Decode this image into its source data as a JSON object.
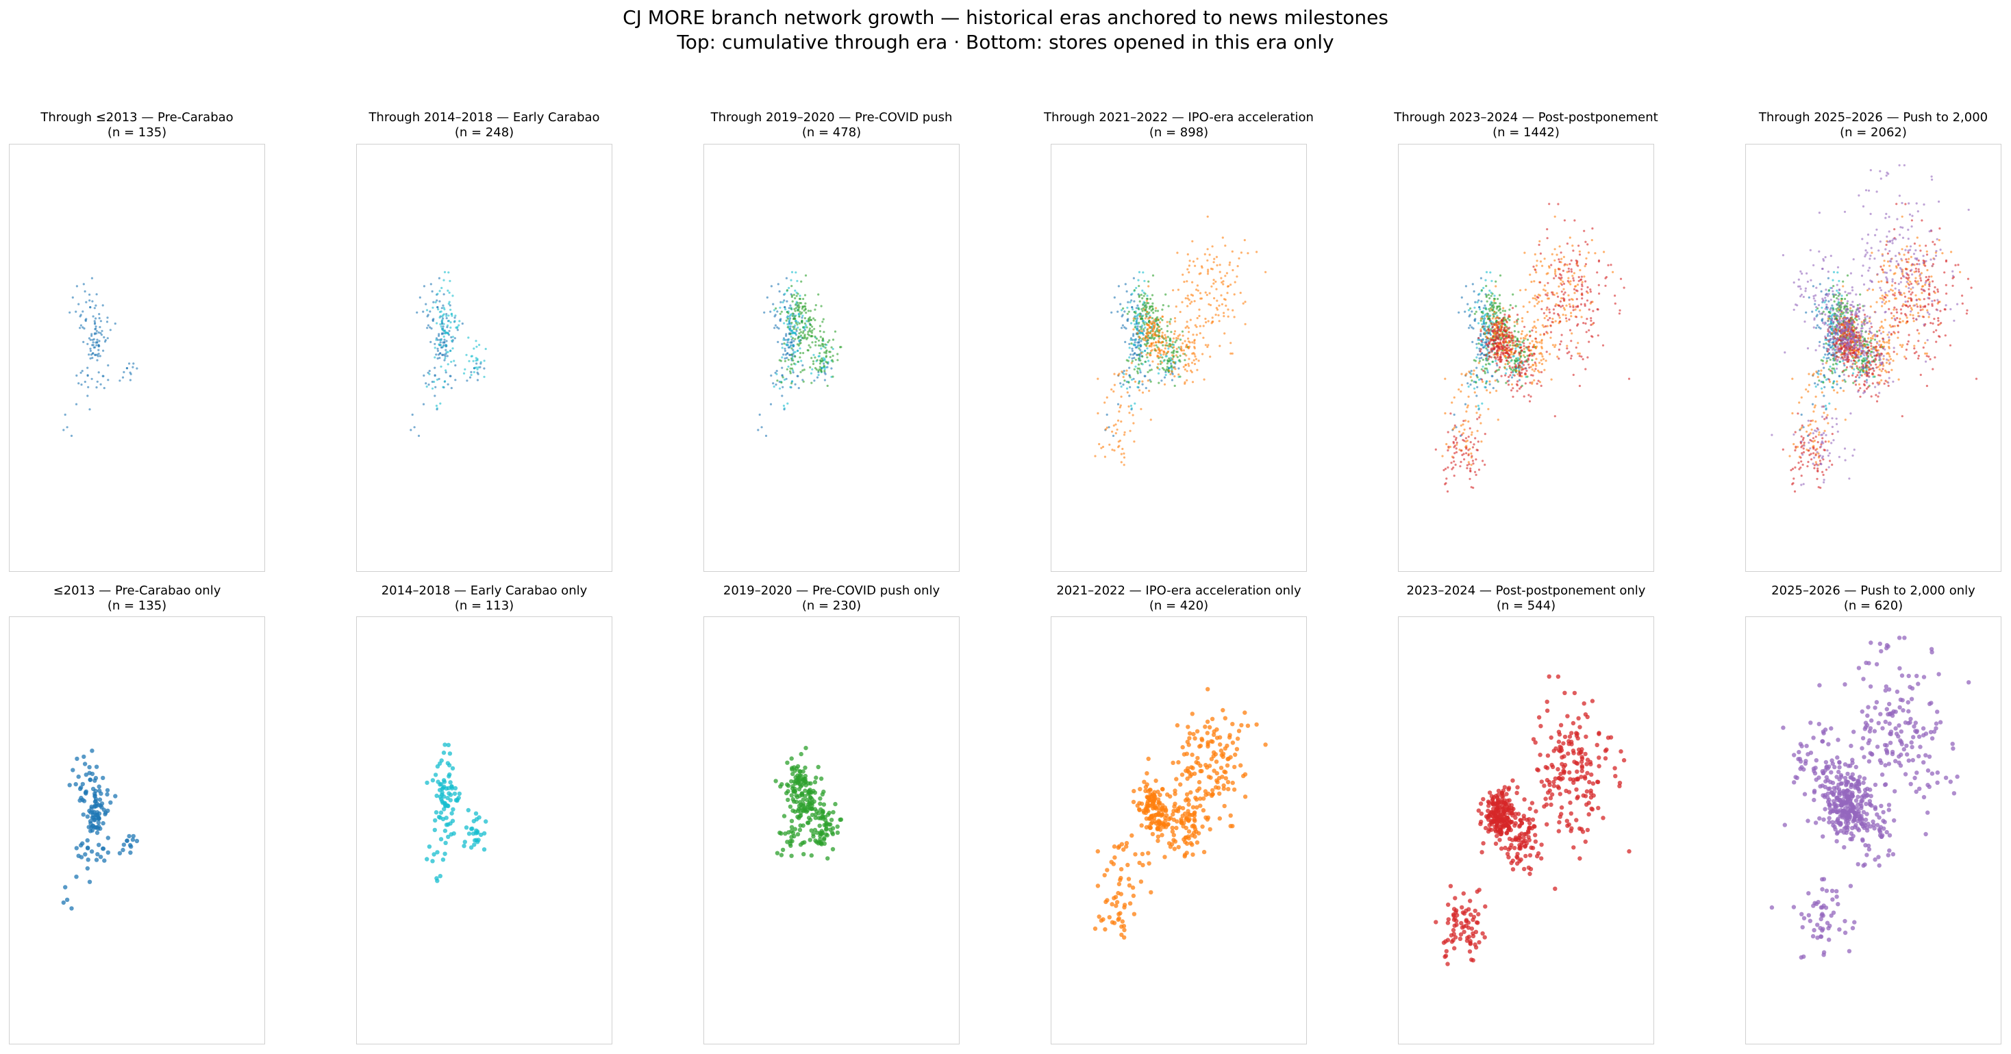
{
  "title_line1": "CJ MORE branch network growth — historical eras anchored to news milestones",
  "title_line2": "Top: cumulative through era · Bottom: stores opened in this era only",
  "chart_data": {
    "type": "scatter",
    "layout": "2x6 small multiples",
    "eras": [
      {
        "name": "≤2013 — Pre-Carabao",
        "color": "#1f77b4",
        "count": 135
      },
      {
        "name": "2014–2018 — Early Carabao",
        "color": "#17becf",
        "count": 113
      },
      {
        "name": "2019–2020 — Pre-COVID push",
        "color": "#2ca02c",
        "count": 230
      },
      {
        "name": "2021–2022 — IPO-era acceleration",
        "color": "#ff7f0e",
        "count": 420
      },
      {
        "name": "2023–2024 — Post-postponement",
        "color": "#d62728",
        "count": 544
      },
      {
        "name": "2025–2026 — Push to 2,000",
        "color": "#9467bd",
        "count": 620
      }
    ],
    "top_row": [
      {
        "title": "Through ≤2013 — Pre-Carabao",
        "n_label": "(n = 135)"
      },
      {
        "title": "Through 2014–2018 — Early Carabao",
        "n_label": "(n = 248)"
      },
      {
        "title": "Through 2019–2020 — Pre-COVID push",
        "n_label": "(n = 478)"
      },
      {
        "title": "Through 2021–2022 — IPO-era acceleration",
        "n_label": "(n = 898)"
      },
      {
        "title": "Through 2023–2024 — Post-postponement",
        "n_label": "(n = 1442)"
      },
      {
        "title": "Through 2025–2026 — Push to 2,000",
        "n_label": "(n = 2062)"
      }
    ],
    "bottom_row": [
      {
        "title": "≤2013 — Pre-Carabao only",
        "n_label": "(n = 135)"
      },
      {
        "title": "2014–2018 — Early Carabao only",
        "n_label": "(n = 113)"
      },
      {
        "title": "2019–2020 — Pre-COVID push only",
        "n_label": "(n = 230)"
      },
      {
        "title": "2021–2022 — IPO-era acceleration only",
        "n_label": "(n = 420)"
      },
      {
        "title": "2023–2024 — Post-postponement only",
        "n_label": "(n = 544)"
      },
      {
        "title": "2025–2026 — Push to 2,000 only",
        "n_label": "(n = 620)"
      }
    ],
    "xlim": [
      0,
      1
    ],
    "ylim": [
      0,
      1
    ],
    "axes_visible": false,
    "grid": false,
    "legend": "none"
  }
}
